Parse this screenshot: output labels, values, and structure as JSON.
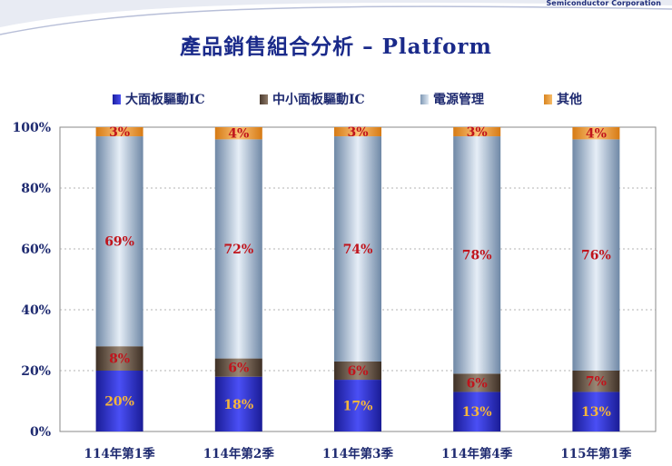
{
  "header": {
    "company": "Semiconductor Corporation",
    "title": "產品銷售組合分析 – Platform"
  },
  "chart_data": {
    "type": "bar",
    "stacked": true,
    "percent_stacked": true,
    "categories": [
      "114年第1季",
      "114年第2季",
      "114年第3季",
      "114年第4季",
      "115年第1季"
    ],
    "series": [
      {
        "name": "大面板驅動IC",
        "values": [
          20,
          18,
          17,
          13,
          13
        ],
        "color": "#2b2fd0",
        "label_color": "#f5b53b"
      },
      {
        "name": "中小面板驅動IC",
        "values": [
          8,
          6,
          6,
          6,
          7
        ],
        "color": "#6e5a4a",
        "label_color": "#c0141c"
      },
      {
        "name": "電源管理",
        "values": [
          69,
          72,
          74,
          78,
          76
        ],
        "color": "#a9bfd6",
        "label_color": "#c0141c"
      },
      {
        "name": "其他",
        "values": [
          3,
          4,
          3,
          3,
          4
        ],
        "color": "#f0a040",
        "label_color": "#c0141c"
      }
    ],
    "data_labels": [
      [
        "20%",
        "18%",
        "17%",
        "13%",
        "13%"
      ],
      [
        "8%",
        "6%",
        "6%",
        "6%",
        "7%"
      ],
      [
        "69%",
        "72%",
        "74%",
        "78%",
        "76%"
      ],
      [
        "3%",
        "4%",
        "3%",
        "3%",
        "4%"
      ]
    ],
    "y_ticks": [
      "0%",
      "20%",
      "40%",
      "60%",
      "80%",
      "100%"
    ],
    "ylim": [
      0,
      100
    ],
    "grid": true,
    "legend_position": "top"
  }
}
